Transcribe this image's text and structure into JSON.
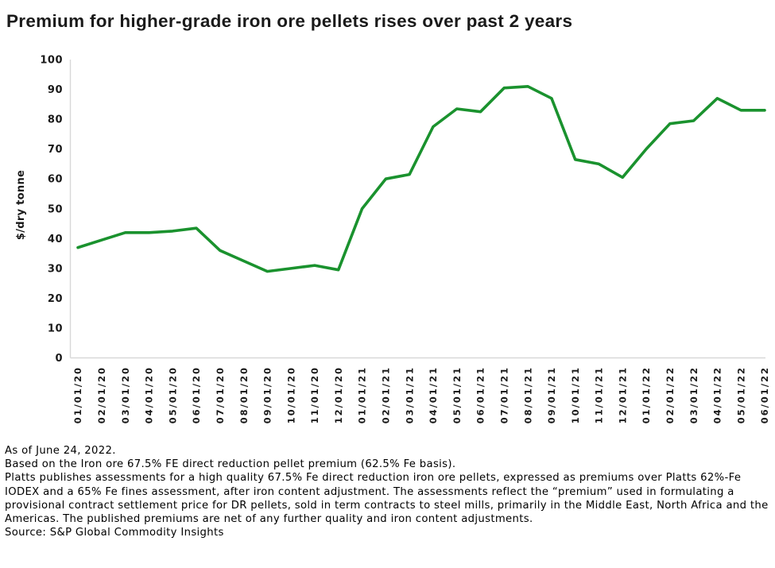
{
  "title": "Premium for higher-grade iron ore pellets rises over past 2 years",
  "chart_data": {
    "type": "line",
    "title": "Premium for higher-grade iron ore pellets rises over past 2 years",
    "xlabel": "",
    "ylabel": "$/dry tonne",
    "ylim": [
      0,
      100
    ],
    "ytick_step": 10,
    "grid": false,
    "legend_position": "none",
    "x": [
      "01/01/20",
      "02/01/20",
      "03/01/20",
      "04/01/20",
      "05/01/20",
      "06/01/20",
      "07/01/20",
      "08/01/20",
      "09/01/20",
      "10/01/20",
      "11/01/20",
      "12/01/20",
      "01/01/21",
      "02/01/21",
      "03/01/21",
      "04/01/21",
      "05/01/21",
      "06/01/21",
      "07/01/21",
      "08/01/21",
      "09/01/21",
      "10/01/21",
      "11/01/21",
      "12/01/21",
      "01/01/22",
      "02/01/22",
      "03/01/22",
      "04/01/22",
      "05/01/22",
      "06/01/22"
    ],
    "series": [
      {
        "name": "Iron ore 67.5% FE direct reduction pellet premium",
        "color": "#1a922e",
        "values": [
          37,
          39.5,
          42,
          42,
          42.5,
          43.5,
          36,
          32.5,
          29,
          30,
          31,
          29.5,
          50,
          60,
          61.5,
          77.5,
          83.5,
          82.5,
          90.5,
          91,
          87,
          66.5,
          65,
          60.5,
          70,
          78.5,
          79.5,
          87,
          83,
          83
        ]
      }
    ]
  },
  "axis_colors": {
    "axis_line": "#d8d8d8",
    "tick_text": "#1a1a1a"
  },
  "footnotes": {
    "as_of": "As of June 24, 2022.",
    "basis": "Based on the Iron ore 67.5% FE direct reduction pellet premium (62.5% Fe basis).",
    "description": "Platts publishes assessments for a high quality 67.5% Fe direct reduction iron ore pellets, expressed as premiums over Platts 62%-Fe IODEX and a 65% Fe fines assessment, after iron content adjustment. The assessments reflect the “premium” used in formulating a provisional contract settlement price for DR pellets, sold in term contracts to steel mills, primarily in the Middle East, North Africa and the Americas. The published premiums are net of any further quality and iron content adjustments.",
    "source": "Source: S&P Global Commodity Insights"
  }
}
